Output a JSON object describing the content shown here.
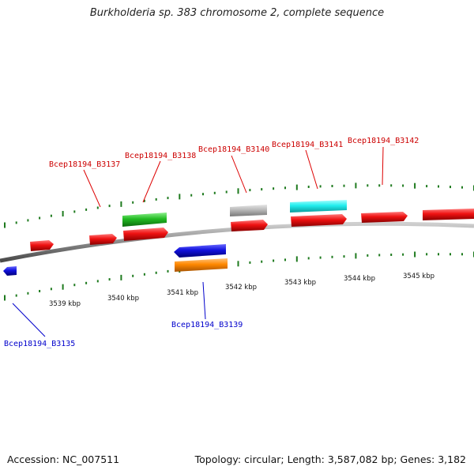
{
  "title": "Burkholderia sp. 383 chromosome 2, complete sequence",
  "footer": {
    "accession": "Accession: NC_007511",
    "summary": "Topology: circular; Length: 3,587,082 bp; Genes: 3,182"
  },
  "colors": {
    "backbone": "#8a8a8a",
    "forward_tick": "#1e7a1e",
    "reverse_tick": "#1e7a1e",
    "label_forward": "#cc0000",
    "label_reverse": "#0000cc",
    "red": "#ee1111",
    "green": "#22bb22",
    "gray": "#b8b8b8",
    "cyan": "#22eeee",
    "blue": "#1111dd",
    "orange": "#ff8800"
  },
  "scale_ticks": [
    {
      "kbp": 3539,
      "label": "3539 kbp"
    },
    {
      "kbp": 3540,
      "label": "3540 kbp"
    },
    {
      "kbp": 3541,
      "label": "3541 kbp"
    },
    {
      "kbp": 3542,
      "label": "3542 kbp"
    },
    {
      "kbp": 3543,
      "label": "3543 kbp"
    },
    {
      "kbp": 3544,
      "label": "3544 kbp"
    },
    {
      "kbp": 3545,
      "label": "3545 kbp"
    }
  ],
  "gene_labels": [
    {
      "name": "Bcep18194_B3137",
      "strand": "forward"
    },
    {
      "name": "Bcep18194_B3138",
      "strand": "forward"
    },
    {
      "name": "Bcep18194_B3140",
      "strand": "forward"
    },
    {
      "name": "Bcep18194_B3141",
      "strand": "forward"
    },
    {
      "name": "Bcep18194_B3142",
      "strand": "forward"
    },
    {
      "name": "Bcep18194_B3139",
      "strand": "reverse"
    },
    {
      "name": "Bcep18194_B3135",
      "strand": "reverse"
    }
  ]
}
